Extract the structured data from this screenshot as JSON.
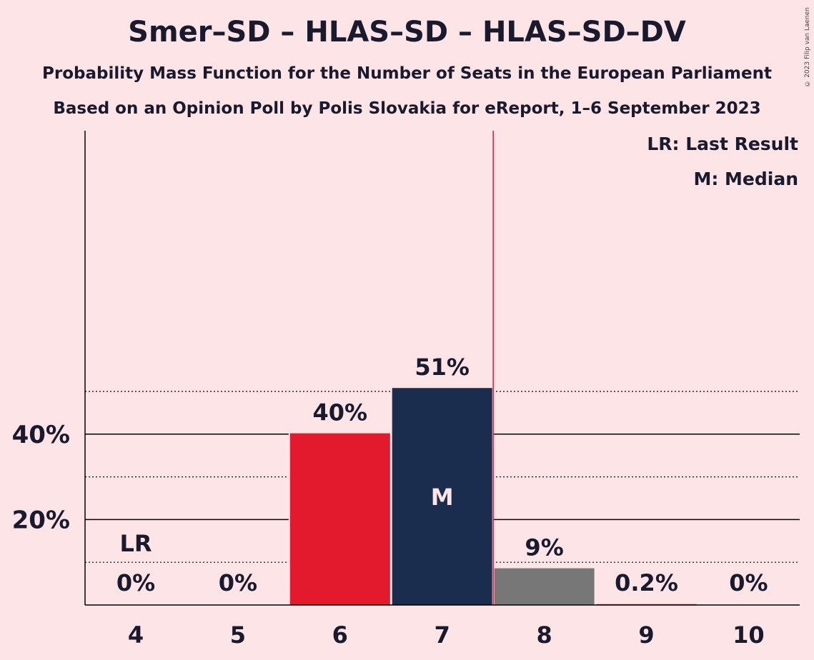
{
  "title": "Smer–SD – HLAS–SD – HLAS–SD–DV",
  "subtitle1": "Probability Mass Function for the Number of Seats in the European Parliament",
  "subtitle2": "Based on an Opinion Poll by Polis Slovakia for eReport, 1–6 September 2023",
  "copyright": "© 2023 Filip van Laenen",
  "legend": {
    "last_result": "LR: Last Result",
    "median": "M: Median"
  },
  "colors": {
    "background": "#fde4e6",
    "red": "#e31a2e",
    "navy": "#1b2d4f",
    "gray": "#777777",
    "last_result_line": "#e31a2e"
  },
  "chart_data": {
    "type": "bar",
    "title": "Smer–SD – HLAS–SD – HLAS–SD–DV",
    "xlabel": "",
    "ylabel": "",
    "categories": [
      "4",
      "5",
      "6",
      "7",
      "8",
      "9",
      "10"
    ],
    "values": [
      0,
      0,
      40.2,
      50.8,
      8.6,
      0.2,
      0
    ],
    "value_labels": [
      "0%",
      "0%",
      "40%",
      "51%",
      "9%",
      "0.2%",
      "0%"
    ],
    "bar_colors": [
      "red",
      "red",
      "red",
      "navy",
      "gray",
      "red",
      "red"
    ],
    "ylim": [
      0,
      55
    ],
    "yticks": [
      20,
      40
    ],
    "ytick_labels": [
      "20%",
      "40%"
    ],
    "minor_gridlines": [
      10,
      30,
      50
    ],
    "last_result_category": "4",
    "last_result_marker": "LR",
    "median_category": "7",
    "median_marker": "M",
    "vertical_line_after_category": "7",
    "legend_position": "top-right"
  }
}
